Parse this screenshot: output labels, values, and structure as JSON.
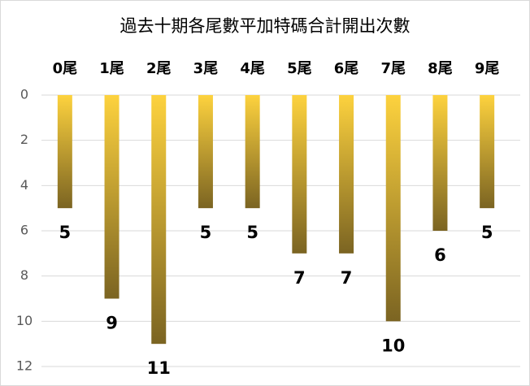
{
  "chart_data": {
    "type": "bar",
    "title": "過去十期各尾數平加特碼合計開出次數",
    "categories": [
      "0尾",
      "1尾",
      "2尾",
      "3尾",
      "4尾",
      "5尾",
      "6尾",
      "7尾",
      "8尾",
      "9尾"
    ],
    "values": [
      5,
      9,
      11,
      5,
      5,
      7,
      7,
      10,
      6,
      5
    ],
    "color": [
      "#fdd23e",
      "#7b6422"
    ],
    "ylim": [
      0,
      12
    ],
    "yticks": [
      0,
      2,
      4,
      6,
      8,
      10,
      12
    ],
    "y_inverted": true,
    "grid": true
  }
}
